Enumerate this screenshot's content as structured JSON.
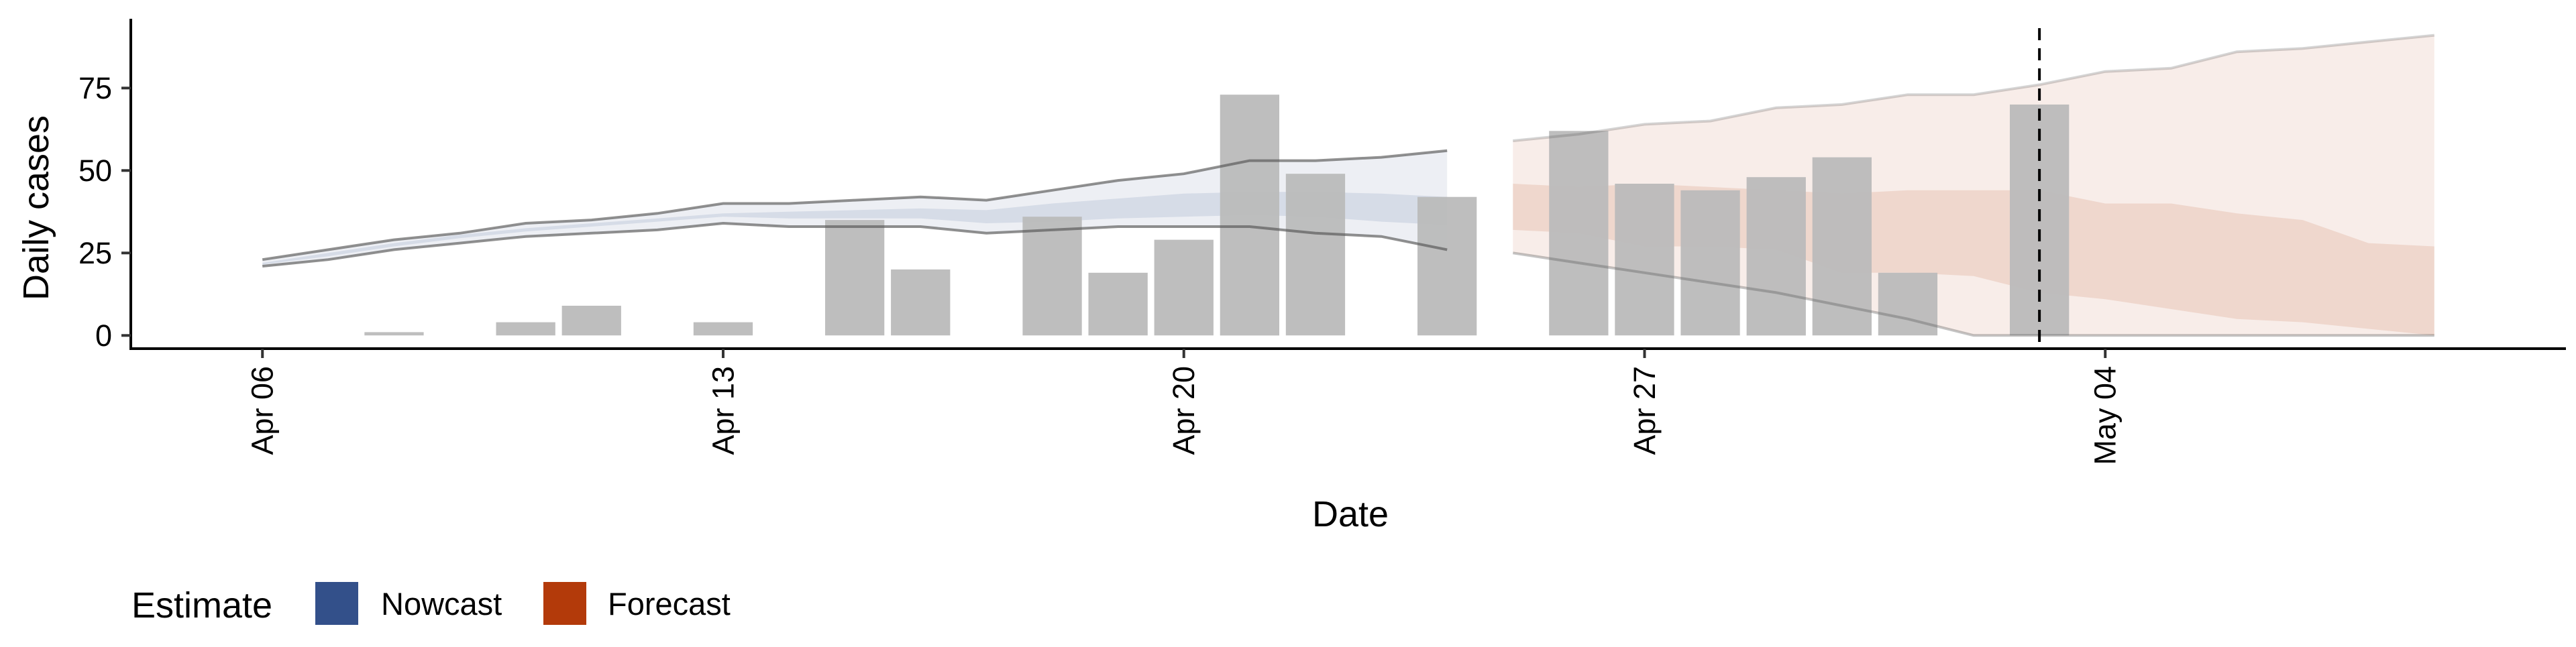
{
  "chart_data": {
    "type": "bar",
    "xlabel": "Date",
    "ylabel": "Daily cases",
    "x_ticks": [
      {
        "date": "2020-04-06",
        "label": "Apr 06"
      },
      {
        "date": "2020-04-13",
        "label": "Apr 13"
      },
      {
        "date": "2020-04-20",
        "label": "Apr 20"
      },
      {
        "date": "2020-04-27",
        "label": "Apr 27"
      },
      {
        "date": "2020-05-04",
        "label": "May 04"
      }
    ],
    "y_ticks": [
      0,
      25,
      50,
      75
    ],
    "xlim": [
      "2020-04-04",
      "2020-05-11"
    ],
    "ylim": [
      -4,
      96
    ],
    "grid": false,
    "vline": {
      "date": "2020-05-03",
      "style": "dashed"
    },
    "legend": {
      "title": "Estimate",
      "position": "bottom-left",
      "items": [
        {
          "label": "Nowcast",
          "color": "#33508a"
        },
        {
          "label": "Forecast",
          "color": "#b33a0a"
        }
      ]
    },
    "bars": {
      "color": "#bbbbbb",
      "dates": [
        "2020-04-08",
        "2020-04-10",
        "2020-04-11",
        "2020-04-13",
        "2020-04-15",
        "2020-04-16",
        "2020-04-18",
        "2020-04-19",
        "2020-04-20",
        "2020-04-21",
        "2020-04-22",
        "2020-04-24",
        "2020-04-26",
        "2020-04-27",
        "2020-04-28",
        "2020-04-29",
        "2020-04-30",
        "2020-05-01",
        "2020-05-03"
      ],
      "values": [
        1,
        4,
        9,
        4,
        35,
        20,
        36,
        19,
        29,
        73,
        49,
        42,
        62,
        46,
        44,
        48,
        54,
        19,
        70
      ]
    },
    "series": [
      {
        "name": "Nowcast",
        "color": "#33508a",
        "dates": [
          "2020-04-06",
          "2020-04-07",
          "2020-04-08",
          "2020-04-09",
          "2020-04-10",
          "2020-04-11",
          "2020-04-12",
          "2020-04-13",
          "2020-04-14",
          "2020-04-15",
          "2020-04-16",
          "2020-04-17",
          "2020-04-18",
          "2020-04-19",
          "2020-04-20",
          "2020-04-21",
          "2020-04-22",
          "2020-04-23",
          "2020-04-24"
        ],
        "lower_90": [
          21,
          23,
          26,
          28,
          30,
          31,
          32,
          34,
          33,
          33,
          33,
          31,
          32,
          33,
          33,
          33,
          31,
          30,
          26
        ],
        "lower_50": [
          21.5,
          24,
          27,
          29.5,
          31.5,
          33,
          34.5,
          36,
          35.5,
          35.5,
          35.5,
          34,
          34.5,
          35.5,
          36,
          36.5,
          36,
          34.5,
          33.5
        ],
        "upper_50": [
          22,
          25,
          28,
          30.5,
          32.5,
          34,
          35.5,
          37,
          37.5,
          38,
          38.5,
          38,
          40,
          41.5,
          43,
          43.5,
          43.5,
          43,
          42
        ],
        "upper_90": [
          23,
          26,
          29,
          31,
          34,
          35,
          37,
          40,
          40,
          41,
          42,
          41,
          44,
          47,
          49,
          53,
          53,
          54,
          56
        ]
      },
      {
        "name": "Forecast",
        "color": "#b33a0a",
        "dates": [
          "2020-04-25",
          "2020-04-26",
          "2020-04-27",
          "2020-04-28",
          "2020-04-29",
          "2020-04-30",
          "2020-05-01",
          "2020-05-02",
          "2020-05-03",
          "2020-05-04",
          "2020-05-05",
          "2020-05-06",
          "2020-05-07",
          "2020-05-08",
          "2020-05-09"
        ],
        "lower_90": [
          25,
          22,
          19,
          16,
          13,
          9,
          5,
          0,
          0,
          0,
          0,
          0,
          0,
          0,
          0
        ],
        "lower_50": [
          32,
          31,
          27,
          27,
          26,
          19,
          19,
          18,
          13,
          11,
          8,
          5,
          4,
          2,
          0
        ],
        "upper_50": [
          46,
          45,
          46,
          45,
          44,
          43,
          44,
          44,
          44,
          40,
          40,
          37,
          35,
          28,
          27
        ],
        "upper_90": [
          59,
          61,
          64,
          65,
          69,
          70,
          73,
          73,
          76,
          80,
          81,
          86,
          87,
          89,
          91
        ]
      }
    ]
  }
}
